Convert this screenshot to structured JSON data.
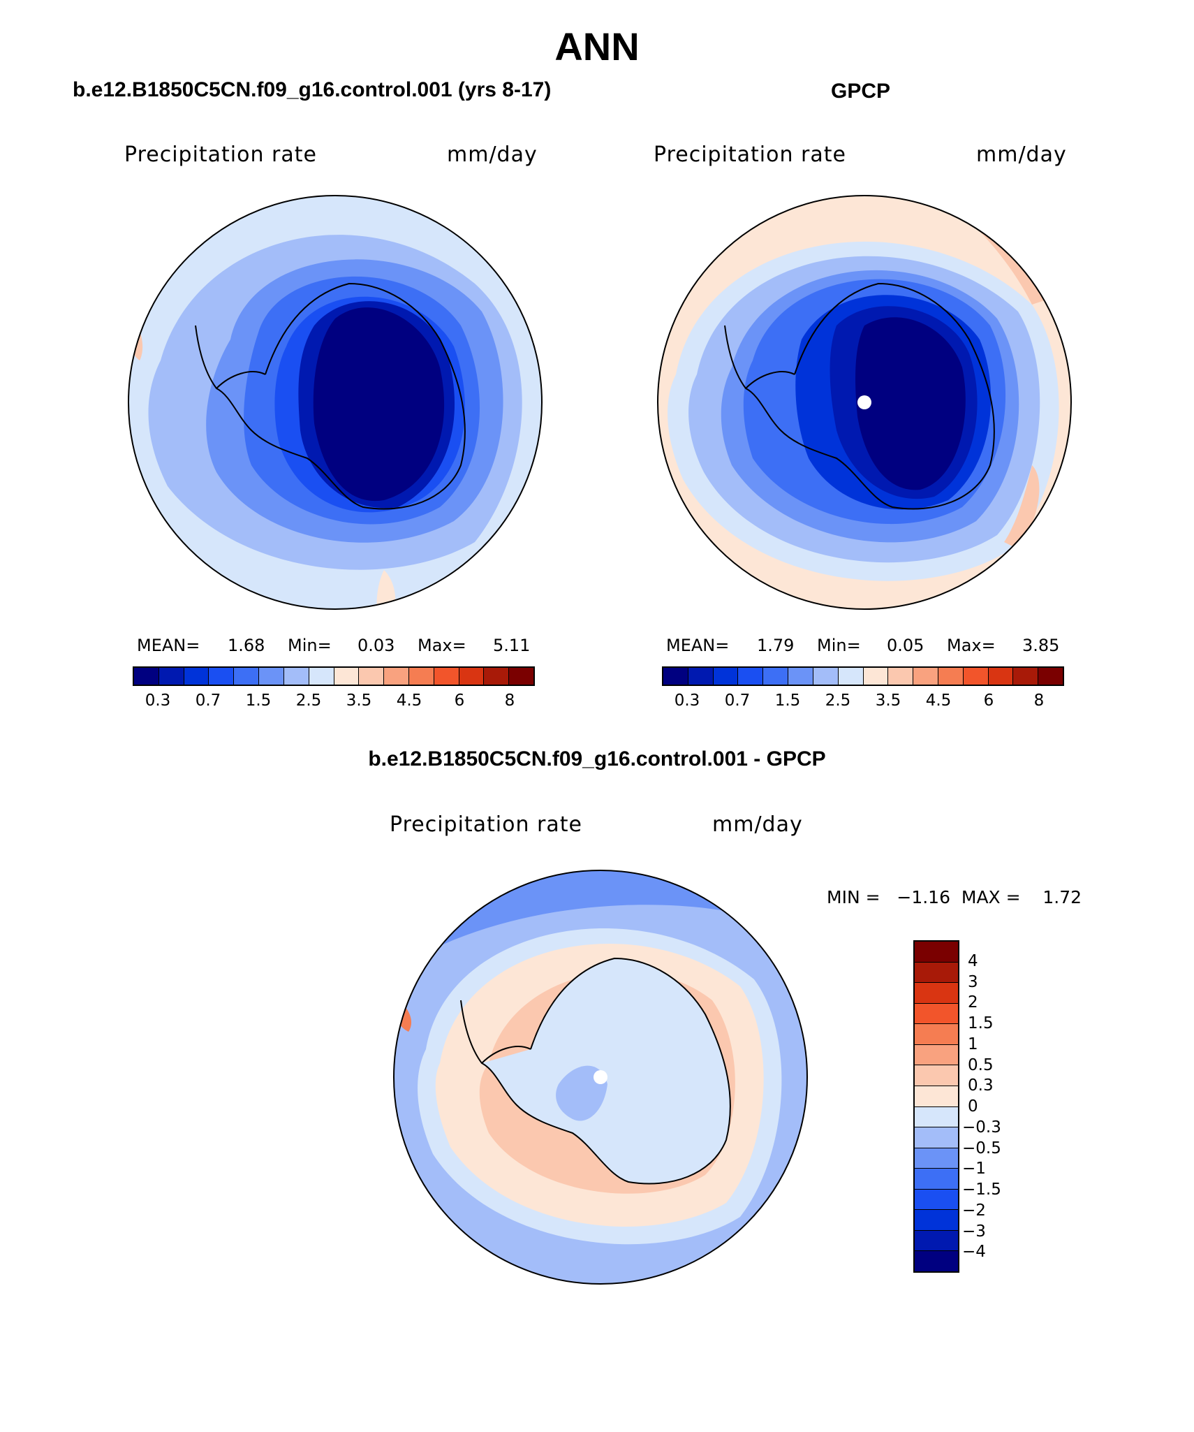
{
  "title": "ANN",
  "panels": {
    "model": {
      "header": "b.e12.B1850C5CN.f09_g16.control.001 (yrs 8-17)",
      "variable": "Precipitation rate",
      "units": "mm/day",
      "stats": {
        "mean_label": "MEAN=",
        "mean": "1.68",
        "min_label": "Min=",
        "min": "0.03",
        "max_label": "Max=",
        "max": "5.11"
      }
    },
    "obs": {
      "header": "GPCP",
      "variable": "Precipitation rate",
      "units": "mm/day",
      "stats": {
        "mean_label": "MEAN=",
        "mean": "1.79",
        "min_label": "Min=",
        "min": "0.05",
        "max_label": "Max=",
        "max": "3.85"
      }
    },
    "diff": {
      "header": "b.e12.B1850C5CN.f09_g16.control.001 - GPCP",
      "variable": "Precipitation rate",
      "units": "mm/day",
      "minmax": "MIN =   −1.16  MAX =    1.72"
    }
  },
  "colorbar_field": {
    "colors": [
      "#000080",
      "#0019b0",
      "#0033d9",
      "#1a4ff2",
      "#3d6ff5",
      "#6b93f7",
      "#a3bdf9",
      "#d6e6fb",
      "#fde6d6",
      "#fbc8af",
      "#f9a27f",
      "#f57d52",
      "#f2552b",
      "#d93512",
      "#a81a08",
      "#7a0000"
    ],
    "labels": [
      "0.3",
      "0.7",
      "1.5",
      "2.5",
      "3.5",
      "4.5",
      "6",
      "8"
    ]
  },
  "colorbar_diff": {
    "colors": [
      "#7a0000",
      "#a81a08",
      "#d93512",
      "#f2552b",
      "#f57d52",
      "#f9a27f",
      "#fbc8af",
      "#fde6d6",
      "#d6e6fb",
      "#a3bdf9",
      "#6b93f7",
      "#3d6ff5",
      "#1a4ff2",
      "#0033d9",
      "#0019b0",
      "#000080"
    ],
    "labels": [
      "4",
      "3",
      "2",
      "1.5",
      "1",
      "0.5",
      "0.3",
      "0",
      "−0.3",
      "−0.5",
      "−1",
      "−1.5",
      "−2",
      "−3",
      "−4"
    ]
  }
}
